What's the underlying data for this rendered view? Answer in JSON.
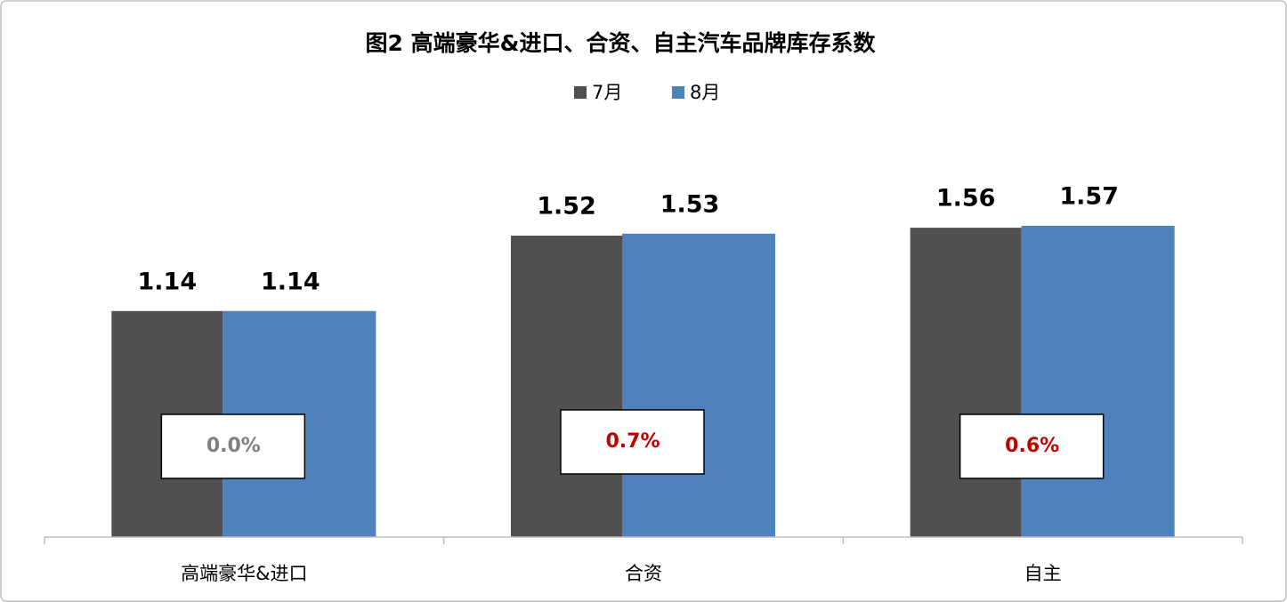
{
  "chart_data": {
    "type": "bar",
    "title": "图2 高端豪华&进口、合资、自主汽车品牌库存系数",
    "categories": [
      "高端豪华&进口",
      "合资",
      "自主"
    ],
    "series": [
      {
        "name": "7月",
        "color": "#505050",
        "values": [
          1.14,
          1.52,
          1.56
        ]
      },
      {
        "name": "8月",
        "color": "#4f81bd",
        "values": [
          1.14,
          1.53,
          1.57
        ]
      }
    ],
    "annotations": [
      {
        "text": "0.0%",
        "color": "#808080"
      },
      {
        "text": "0.7%",
        "color": "#c00000"
      },
      {
        "text": "0.6%",
        "color": "#c00000"
      }
    ],
    "ylim": [
      0,
      2
    ],
    "legend": "top"
  }
}
